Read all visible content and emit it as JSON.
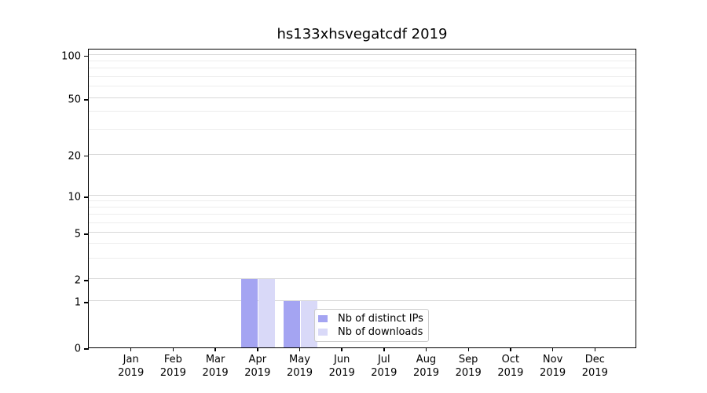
{
  "chart_data": {
    "type": "bar",
    "title": "hs133xhsvegatcdf 2019",
    "year_label": "2019",
    "categories": [
      "Jan",
      "Feb",
      "Mar",
      "Apr",
      "May",
      "Jun",
      "Jul",
      "Aug",
      "Sep",
      "Oct",
      "Nov",
      "Dec"
    ],
    "series": [
      {
        "name": "Nb of distinct IPs",
        "key": "distinct-ips",
        "color": "#a4a4f2",
        "values": [
          0,
          0,
          0,
          2,
          1,
          0,
          0,
          0,
          0,
          0,
          0,
          0
        ]
      },
      {
        "name": "Nb of downloads",
        "key": "downloads",
        "color": "#d9d9f8",
        "values": [
          0,
          0,
          0,
          2,
          1,
          0,
          0,
          0,
          0,
          0,
          0,
          0
        ]
      }
    ],
    "y_axis": {
      "tick_values": [
        100,
        50,
        20,
        10,
        5,
        2,
        1,
        0
      ],
      "tick_labels": [
        "100",
        "50",
        "20",
        "10",
        "5",
        "2",
        "1",
        "0"
      ],
      "scale": "symlog-like",
      "minor_values": [
        3,
        4,
        6,
        7,
        8,
        9,
        30,
        40,
        60,
        70,
        80,
        90
      ],
      "anchor_fractions": {
        "0": 0,
        "1": 0.155,
        "2": 0.229,
        "5": 0.383,
        "10": 0.5066,
        "20": 0.6444,
        "50": 0.8328,
        "100": 0.9772
      }
    },
    "x_axis": {
      "slots": 13
    },
    "legend": {
      "position": "lower-center",
      "entries": [
        "Nb of distinct IPs",
        "Nb of downloads"
      ]
    },
    "grid": "horizontal",
    "colors": {
      "bar_dark": "#a4a4f2",
      "bar_light": "#d9d9f8",
      "grid_major": "#d8d8d8",
      "grid_minor": "#ededed",
      "spine": "#000000",
      "text": "#000000",
      "legend_border": "#cccccc",
      "background": "#ffffff"
    }
  }
}
